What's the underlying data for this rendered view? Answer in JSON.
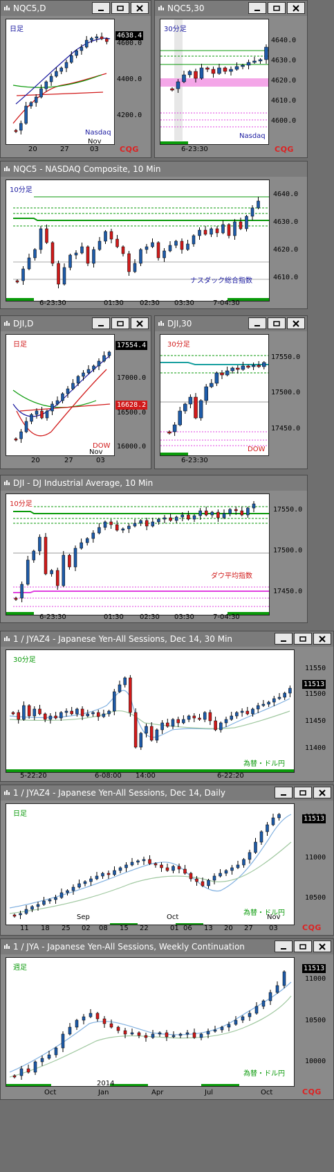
{
  "colors": {
    "up": "#1e5ba8",
    "down": "#d11a1a",
    "green": "#0a9a0a",
    "magenta": "#e040e0",
    "navy": "#1a1aa0"
  },
  "windows": {
    "nqc5d": {
      "title": "NQC5,D",
      "label": "日足",
      "source": "Nasdaq",
      "month": "Nov",
      "x_ticks": [
        "20",
        "27",
        "03"
      ],
      "y_ticks": [
        "4600.0",
        "4400.0",
        "4200.0"
      ],
      "last_price": "4638.4",
      "brand": "CQG"
    },
    "nqc530": {
      "title": "NQC5,30",
      "label": "30分足",
      "source": "Nasdaq",
      "x_ticks": [
        "6-23:30"
      ],
      "y_ticks": [
        "4640.0",
        "4630.0",
        "4620.0",
        "4610.0",
        "4600.0"
      ],
      "brand": "CQG"
    },
    "nqc510": {
      "title": "NQC5 - NASDAQ Composite, 10 Min",
      "label": "10分足",
      "source": "ナスダック総合指数",
      "x_ticks": [
        "6-23:30",
        "01:30",
        "02:30",
        "03:30",
        "7-04:30"
      ],
      "y_ticks": [
        "4640.0",
        "4630.0",
        "4620.0",
        "4610.0"
      ]
    },
    "djid": {
      "title": "DJI,D",
      "label": "日足",
      "source": "DOW",
      "month": "Nov",
      "x_ticks": [
        "20",
        "27",
        "03"
      ],
      "y_ticks": [
        "17000.0",
        "16500.0",
        "16000.0"
      ],
      "last_price": "17554.4",
      "ma_price": "16628.2"
    },
    "dji30": {
      "title": "DJI,30",
      "label": "30分足",
      "source": "DOW",
      "x_ticks": [
        "6-23:30"
      ],
      "y_ticks": [
        "17550.0",
        "17500.0",
        "17450.0"
      ]
    },
    "dji10": {
      "title": "DJI - DJ Industrial Average, 10 Min",
      "label": "10分足",
      "source": "ダウ平均指数",
      "x_ticks": [
        "6-23:30",
        "01:30",
        "02:30",
        "03:30",
        "7-04:30"
      ],
      "y_ticks": [
        "17550.0",
        "17500.0",
        "17450.0"
      ]
    },
    "jya30": {
      "title": "1 / JYAZ4 - Japanese Yen-All Sessions, Dec 14, 30 Min",
      "label": "30分足",
      "source": "為替・ドル円",
      "x_ticks": [
        "5-22:20",
        "6-08:00",
        "14:00",
        "6-22:20"
      ],
      "y_ticks": [
        "11550",
        "11500",
        "11450",
        "11400"
      ],
      "last_price": "11513"
    },
    "jyad": {
      "title": "1 / JYAZ4 - Japanese Yen-All Sessions, Dec 14, Daily",
      "label": "日足",
      "source": "為替・ドル円",
      "month1": "Sep",
      "month2": "Oct",
      "month3": "Nov",
      "x_ticks": [
        "11",
        "18",
        "25",
        "02",
        "08",
        "15",
        "22",
        "01",
        "06",
        "13",
        "20",
        "27",
        "03"
      ],
      "y_ticks": [
        "11500",
        "11000",
        "10500"
      ],
      "last_price": "11513",
      "brand": "CQG"
    },
    "jyaw": {
      "title": "1 / JYA - Japanese Yen-All Sessions, Weekly Continuation",
      "label": "週足",
      "source": "為替・ドル円",
      "year": "2014",
      "x_ticks": [
        "Oct",
        "Jan",
        "Apr",
        "Jul",
        "Oct"
      ],
      "y_ticks": [
        "11000",
        "10500",
        "10000"
      ],
      "last_price": "11513",
      "brand": "CQG"
    }
  }
}
